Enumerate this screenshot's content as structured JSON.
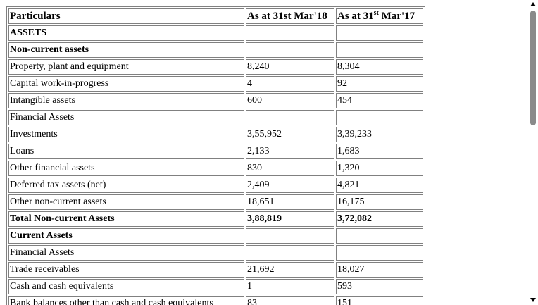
{
  "table": {
    "header": {
      "particulars": "Particulars",
      "col1": "As at 31st Mar'18",
      "col2_prefix": "As at 31",
      "col2_sup": "st",
      "col2_suffix": " Mar'17"
    },
    "rows": [
      {
        "label": "ASSETS",
        "v18": "",
        "v17": "",
        "style": "bold"
      },
      {
        "label": "Non-current assets",
        "v18": "",
        "v17": "",
        "style": "bold"
      },
      {
        "label": "Property, plant and equipment",
        "v18": "8,240",
        "v17": "8,304",
        "style": ""
      },
      {
        "label": "Capital work-in-progress",
        "v18": "4",
        "v17": "92",
        "style": ""
      },
      {
        "label": "Intangible assets",
        "v18": "600",
        "v17": "454",
        "style": ""
      },
      {
        "label": "Financial Assets",
        "v18": "",
        "v17": "",
        "style": ""
      },
      {
        "label": "Investments",
        "v18": "3,55,952",
        "v17": "3,39,233",
        "style": ""
      },
      {
        "label": "Loans",
        "v18": "2,133",
        "v17": "1,683",
        "style": ""
      },
      {
        "label": "Other financial assets",
        "v18": "830",
        "v17": "1,320",
        "style": ""
      },
      {
        "label": "Deferred tax assets (net)",
        "v18": "2,409",
        "v17": "4,821",
        "style": ""
      },
      {
        "label": "Other non-current assets",
        "v18": "18,651",
        "v17": "16,175",
        "style": ""
      },
      {
        "label": "Total Non-current Assets",
        "v18": "3,88,819",
        "v17": "3,72,082",
        "style": "bold"
      },
      {
        "label": "Current Assets",
        "v18": "",
        "v17": "",
        "style": "bold"
      },
      {
        "label": "Financial Assets",
        "v18": "",
        "v17": "",
        "style": ""
      },
      {
        "label": "Trade receivables",
        "v18": "21,692",
        "v17": "18,027",
        "style": ""
      },
      {
        "label": "Cash and cash equivalents",
        "v18": "1",
        "v17": "593",
        "style": ""
      },
      {
        "label": "Bank balances other than cash and cash equivalents",
        "v18": "83",
        "v17": "151",
        "style": ""
      }
    ]
  },
  "scrollbar": {
    "up_icon": "triangle-up-icon",
    "down_icon": "triangle-down-icon",
    "colors": {
      "thumb": "#8a8a8a",
      "arrow": "#000000"
    }
  }
}
